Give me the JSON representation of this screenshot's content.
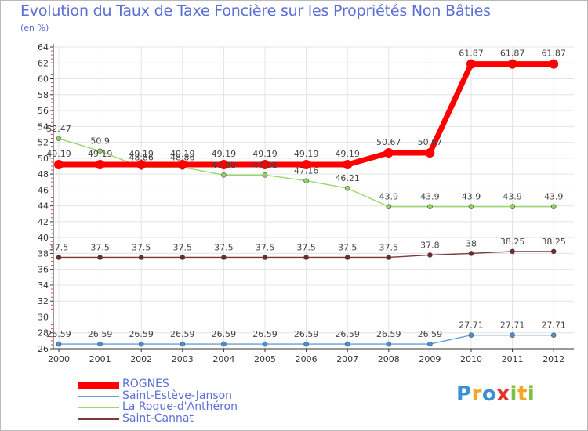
{
  "chart_data": {
    "type": "line",
    "title": "Evolution du Taux de Taxe Foncière sur les Propriétés Non Bâties",
    "subtitle": "(en %)",
    "xlabel": "",
    "ylabel": "",
    "ylim": [
      26,
      64
    ],
    "yticks": [
      26,
      28,
      30,
      32,
      34,
      36,
      38,
      40,
      42,
      44,
      46,
      48,
      50,
      52,
      54,
      56,
      58,
      60,
      62,
      64
    ],
    "grid": true,
    "legend_position": "bottom-left",
    "categories": [
      "2000",
      "2001",
      "2002",
      "2003",
      "2004",
      "2005",
      "2006",
      "2007",
      "2008",
      "2009",
      "2010",
      "2011",
      "2012"
    ],
    "series": [
      {
        "name": "ROGNES",
        "color": "#ff0000",
        "point_color": "#ff0000",
        "labels": [
          "49.19",
          "49.19",
          "49.19",
          "49.19",
          "49.19",
          "49.19",
          "49.19",
          "49.19",
          "50.67",
          "50.67",
          "61.87",
          "61.87",
          "61.87"
        ]
      },
      {
        "name": "Saint-Estève-Janson",
        "color": "#6a9fd2",
        "point_color": "#4a8fd4",
        "labels": [
          "26.59",
          "26.59",
          "26.59",
          "26.59",
          "26.59",
          "26.59",
          "26.59",
          "26.59",
          "26.59",
          "26.59",
          "27.71",
          "27.71",
          "27.71"
        ]
      },
      {
        "name": "La Roque-d'Anthéron",
        "color": "#9ad76a",
        "point_color": "#8ed25a",
        "labels": [
          "52.47",
          "50.9",
          "48.86",
          "48.86",
          "47.88",
          "47.88",
          "47.16",
          "46.21",
          "43.9",
          "43.9",
          "43.9",
          "43.9",
          "43.9"
        ]
      },
      {
        "name": "Saint-Cannat",
        "color": "#7a3838",
        "point_color": "#6e2a2a",
        "labels": [
          "37.5",
          "37.5",
          "37.5",
          "37.5",
          "37.5",
          "37.5",
          "37.5",
          "37.5",
          "37.5",
          "37.8",
          "38",
          "38.25",
          "38.25"
        ]
      }
    ]
  },
  "logo": {
    "letters": [
      "P",
      "r",
      "o",
      "x",
      "i",
      "t",
      "i"
    ],
    "colors": [
      "#3a8fd8",
      "#f5a623",
      "#3a8fd8",
      "#e5352b",
      "#7cc142",
      "#f5a623",
      "#7cc142"
    ]
  }
}
